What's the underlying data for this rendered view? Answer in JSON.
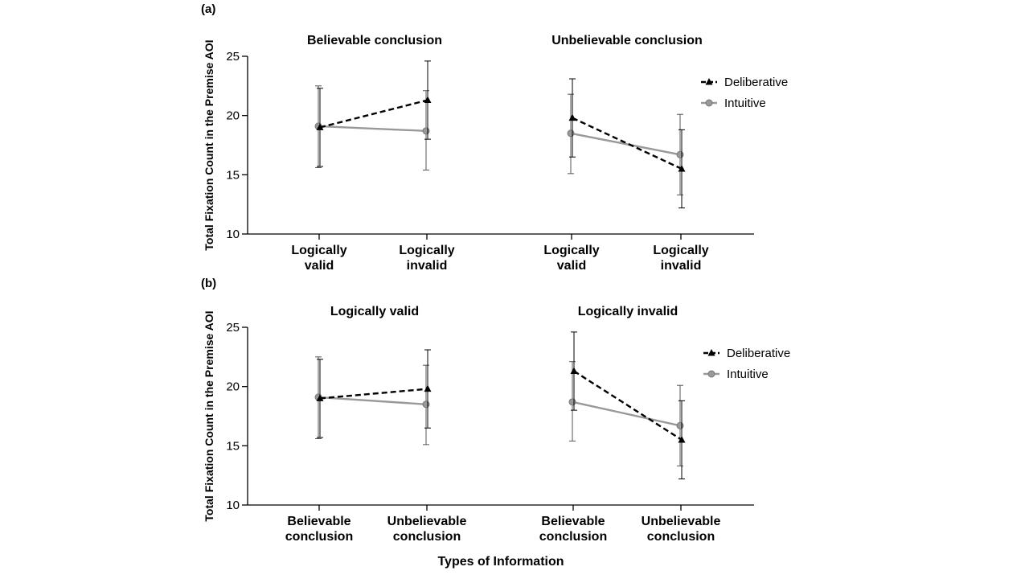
{
  "chart_data": [
    {
      "type": "line",
      "panel_label": "(a)",
      "ylabel": "Total Fixation Count in the Premise AOI",
      "xlabel": "",
      "ylim": [
        10,
        25
      ],
      "yticks": [
        10,
        15,
        20,
        25
      ],
      "groups": [
        {
          "title": "Believable conclusion",
          "categories": [
            [
              "Logically",
              "valid"
            ],
            [
              "Logically",
              "invalid"
            ]
          ],
          "series": [
            {
              "name": "Deliberative",
              "values": [
                19.0,
                21.3
              ],
              "err_low": [
                15.7,
                18.0
              ],
              "err_high": [
                22.3,
                24.6
              ]
            },
            {
              "name": "Intuitive",
              "values": [
                19.1,
                18.7
              ],
              "err_low": [
                15.6,
                15.4
              ],
              "err_high": [
                22.5,
                22.1
              ]
            }
          ]
        },
        {
          "title": "Unbelievable conclusion",
          "categories": [
            [
              "Logically",
              "valid"
            ],
            [
              "Logically",
              "invalid"
            ]
          ],
          "series": [
            {
              "name": "Deliberative",
              "values": [
                19.8,
                15.5
              ],
              "err_low": [
                16.5,
                12.2
              ],
              "err_high": [
                23.1,
                18.8
              ]
            },
            {
              "name": "Intuitive",
              "values": [
                18.5,
                16.7
              ],
              "err_low": [
                15.1,
                13.3
              ],
              "err_high": [
                21.8,
                20.1
              ]
            }
          ]
        }
      ],
      "legend": [
        "Deliberative",
        "Intuitive"
      ],
      "colors": {
        "Deliberative": "#000000",
        "Intuitive": "#999999"
      }
    },
    {
      "type": "line",
      "panel_label": "(b)",
      "ylabel": "Total Fixation Count in the Premise AOI",
      "xlabel": "Types of Information",
      "ylim": [
        10,
        25
      ],
      "yticks": [
        10,
        15,
        20,
        25
      ],
      "groups": [
        {
          "title": "Logically valid",
          "categories": [
            [
              "Believable",
              "conclusion"
            ],
            [
              "Unbelievable",
              "conclusion"
            ]
          ],
          "series": [
            {
              "name": "Deliberative",
              "values": [
                19.0,
                19.8
              ],
              "err_low": [
                15.7,
                16.5
              ],
              "err_high": [
                22.3,
                23.1
              ]
            },
            {
              "name": "Intuitive",
              "values": [
                19.1,
                18.5
              ],
              "err_low": [
                15.6,
                15.1
              ],
              "err_high": [
                22.5,
                21.8
              ]
            }
          ]
        },
        {
          "title": "Logically invalid",
          "categories": [
            [
              "Believable",
              "conclusion"
            ],
            [
              "Unbelievable",
              "conclusion"
            ]
          ],
          "series": [
            {
              "name": "Deliberative",
              "values": [
                21.3,
                15.5
              ],
              "err_low": [
                18.0,
                12.2
              ],
              "err_high": [
                24.6,
                18.8
              ]
            },
            {
              "name": "Intuitive",
              "values": [
                18.7,
                16.7
              ],
              "err_low": [
                15.4,
                13.3
              ],
              "err_high": [
                22.1,
                20.1
              ]
            }
          ]
        }
      ],
      "legend": [
        "Deliberative",
        "Intuitive"
      ],
      "colors": {
        "Deliberative": "#000000",
        "Intuitive": "#999999"
      }
    }
  ]
}
